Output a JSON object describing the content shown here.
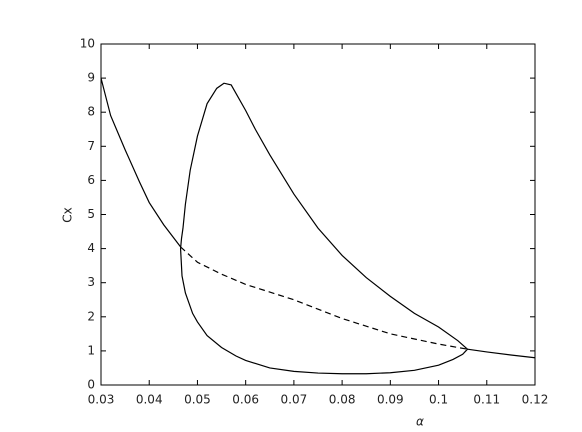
{
  "chart_data": {
    "type": "line",
    "x_label": "α",
    "y_label": "Cx",
    "xlim": [
      0.03,
      0.12
    ],
    "xticks": [
      0.03,
      0.04,
      0.05,
      0.06,
      0.07,
      0.08,
      0.09,
      0.1,
      0.11,
      0.12
    ],
    "ylim": [
      0,
      10
    ],
    "yticks": [
      0,
      1,
      2,
      3,
      4,
      5,
      6,
      7,
      8,
      9,
      10
    ],
    "grid": false,
    "series": [
      {
        "color": "#000000",
        "dash": false,
        "x": [
          0.03,
          0.032,
          0.035,
          0.038,
          0.04,
          0.043,
          0.0465
        ],
        "values": [
          9.0,
          7.9,
          6.9,
          5.95,
          5.35,
          4.7,
          4.05
        ]
      },
      {
        "color": "#000000",
        "dash": true,
        "x": [
          0.0465,
          0.05,
          0.055,
          0.06,
          0.07,
          0.08,
          0.09,
          0.1,
          0.106
        ],
        "values": [
          4.05,
          3.6,
          3.25,
          2.95,
          2.5,
          1.95,
          1.5,
          1.2,
          1.05
        ]
      },
      {
        "color": "#000000",
        "dash": false,
        "x": [
          0.106,
          0.11,
          0.115,
          0.12
        ],
        "values": [
          1.05,
          0.97,
          0.88,
          0.8
        ]
      },
      {
        "color": "#000000",
        "dash": false,
        "x": [
          0.106,
          0.104,
          0.1,
          0.095,
          0.09,
          0.085,
          0.08,
          0.075,
          0.07,
          0.065,
          0.062,
          0.06,
          0.058,
          0.057,
          0.0555,
          0.054,
          0.052,
          0.05,
          0.0485,
          0.0475,
          0.047,
          0.0467,
          0.0465,
          0.0468,
          0.0475,
          0.049,
          0.05,
          0.052,
          0.055,
          0.058,
          0.06,
          0.065,
          0.07,
          0.075,
          0.08,
          0.085,
          0.09,
          0.095,
          0.1,
          0.103,
          0.105,
          0.106
        ],
        "values": [
          1.05,
          1.3,
          1.7,
          2.1,
          2.6,
          3.15,
          3.8,
          4.6,
          5.6,
          6.75,
          7.5,
          8.05,
          8.55,
          8.8,
          8.85,
          8.7,
          8.25,
          7.3,
          6.3,
          5.3,
          4.6,
          4.3,
          4.0,
          3.2,
          2.7,
          2.1,
          1.85,
          1.45,
          1.1,
          0.85,
          0.72,
          0.5,
          0.4,
          0.35,
          0.33,
          0.33,
          0.36,
          0.43,
          0.58,
          0.75,
          0.9,
          1.05
        ]
      }
    ]
  }
}
